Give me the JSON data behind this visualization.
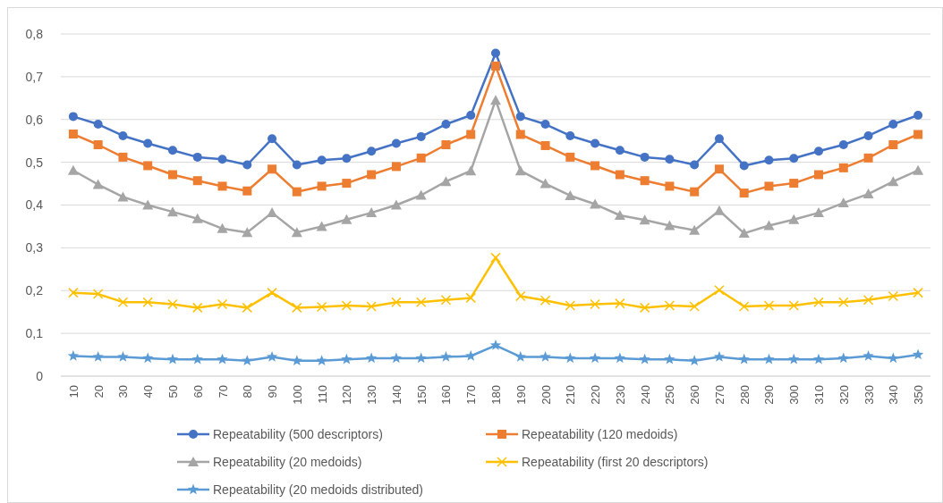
{
  "chart_data": {
    "type": "line",
    "categories": [
      "10",
      "20",
      "30",
      "40",
      "50",
      "60",
      "70",
      "80",
      "90",
      "100",
      "110",
      "120",
      "130",
      "140",
      "150",
      "160",
      "170",
      "180",
      "190",
      "200",
      "210",
      "220",
      "230",
      "240",
      "250",
      "260",
      "270",
      "280",
      "290",
      "300",
      "310",
      "320",
      "330",
      "340",
      "350"
    ],
    "series": [
      {
        "name": "Repeatability (500 descriptors)",
        "color": "#4472c4",
        "marker": "circle",
        "values": [
          0.607,
          0.589,
          0.562,
          0.544,
          0.528,
          0.512,
          0.507,
          0.494,
          0.555,
          0.494,
          0.505,
          0.509,
          0.526,
          0.544,
          0.56,
          0.589,
          0.61,
          0.755,
          0.607,
          0.589,
          0.562,
          0.544,
          0.528,
          0.512,
          0.507,
          0.494,
          0.555,
          0.492,
          0.505,
          0.509,
          0.526,
          0.541,
          0.562,
          0.589,
          0.61
        ]
      },
      {
        "name": "Repeatability (120 medoids)",
        "color": "#ed7d31",
        "marker": "square",
        "values": [
          0.566,
          0.541,
          0.512,
          0.492,
          0.471,
          0.457,
          0.444,
          0.433,
          0.484,
          0.431,
          0.444,
          0.451,
          0.471,
          0.49,
          0.51,
          0.541,
          0.565,
          0.725,
          0.565,
          0.539,
          0.512,
          0.492,
          0.471,
          0.457,
          0.444,
          0.431,
          0.484,
          0.428,
          0.444,
          0.451,
          0.471,
          0.487,
          0.51,
          0.541,
          0.565
        ]
      },
      {
        "name": "Repeatability (20 medoids)",
        "color": "#a5a5a5",
        "marker": "triangle",
        "values": [
          0.481,
          0.448,
          0.419,
          0.4,
          0.384,
          0.368,
          0.345,
          0.336,
          0.382,
          0.336,
          0.35,
          0.366,
          0.382,
          0.4,
          0.423,
          0.455,
          0.48,
          0.645,
          0.48,
          0.45,
          0.422,
          0.402,
          0.376,
          0.365,
          0.352,
          0.341,
          0.387,
          0.334,
          0.352,
          0.366,
          0.382,
          0.405,
          0.426,
          0.455,
          0.481
        ]
      },
      {
        "name": "Repeatability (first 20 descriptors)",
        "color": "#ffc000",
        "marker": "cross",
        "values": [
          0.195,
          0.192,
          0.173,
          0.173,
          0.168,
          0.16,
          0.168,
          0.16,
          0.195,
          0.16,
          0.162,
          0.165,
          0.163,
          0.173,
          0.173,
          0.178,
          0.183,
          0.277,
          0.187,
          0.177,
          0.165,
          0.168,
          0.17,
          0.16,
          0.165,
          0.163,
          0.201,
          0.163,
          0.165,
          0.165,
          0.173,
          0.173,
          0.178,
          0.187,
          0.195
        ]
      },
      {
        "name": "Repeatability (20 medoids distributed)",
        "color": "#5b9bd5",
        "marker": "star",
        "values": [
          0.047,
          0.045,
          0.045,
          0.042,
          0.039,
          0.039,
          0.039,
          0.036,
          0.045,
          0.036,
          0.036,
          0.039,
          0.042,
          0.042,
          0.042,
          0.045,
          0.047,
          0.072,
          0.045,
          0.045,
          0.042,
          0.042,
          0.042,
          0.039,
          0.039,
          0.036,
          0.045,
          0.039,
          0.039,
          0.039,
          0.039,
          0.042,
          0.047,
          0.042,
          0.05
        ]
      }
    ],
    "ylim": [
      0,
      0.8
    ],
    "yticks": [
      0,
      {
        "value": 0.1,
        "label": "0,1"
      },
      {
        "value": 0.2,
        "label": "0,2"
      },
      {
        "value": 0.3,
        "label": "0,3"
      },
      {
        "value": 0.4,
        "label": "0,4"
      },
      {
        "value": 0.5,
        "label": "0,5"
      },
      {
        "value": 0.6,
        "label": "0,6"
      },
      {
        "value": 0.7,
        "label": "0,7"
      },
      {
        "value": 0.8,
        "label": "0,8"
      }
    ],
    "grid": "y",
    "legend": "bottom",
    "line_style": "solid"
  }
}
